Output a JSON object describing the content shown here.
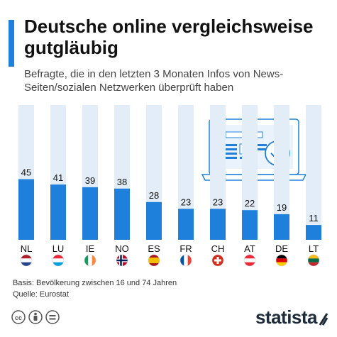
{
  "header": {
    "title": "Deutsche online vergleichsweise gutgläubig",
    "subtitle": "Befragte, die in den letzten 3 Monaten Infos von News-Seiten/sozialen Netzwerken überprüft haben"
  },
  "chart_data": {
    "type": "bar",
    "categories": [
      "NL",
      "LU",
      "IE",
      "NO",
      "ES",
      "FR",
      "CH",
      "AT",
      "DE",
      "LT"
    ],
    "values": [
      45,
      41,
      39,
      38,
      28,
      23,
      23,
      22,
      19,
      11
    ],
    "title": "Deutsche online vergleichsweise gutgläubig",
    "subtitle": "Befragte, die in den letzten 3 Monaten Infos von News-Seiten/sozialen Netzwerken überprüft haben",
    "ylim": [
      0,
      100
    ],
    "grid": false,
    "bar_color": "#1f80dc",
    "background_bar_color": "#e3edf7"
  },
  "footer": {
    "basis": "Basis: Bevölkerung zwischen 16 und 74 Jahren",
    "source": "Quelle: Eurostat",
    "brand": "statista"
  },
  "colors": {
    "accent": "#1f80dc",
    "text_dark": "#111111"
  }
}
